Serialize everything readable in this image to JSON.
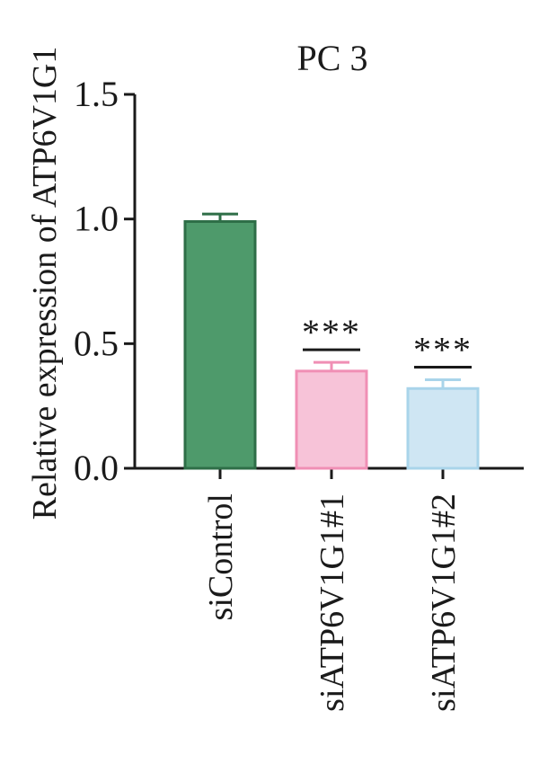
{
  "chart_data": {
    "type": "bar",
    "title": "PC 3",
    "ylabel": "Relative expression of ATP6V1G1",
    "xlabel": "",
    "ylim": [
      0,
      1.5
    ],
    "yticks": [
      "0.0",
      "0.5",
      "1.0",
      "1.5"
    ],
    "ytick_values": [
      0,
      0.5,
      1.0,
      1.5
    ],
    "categories": [
      "siControl",
      "siATP6V1G1#1",
      "siATP6V1G1#2"
    ],
    "values": [
      0.99,
      0.39,
      0.32
    ],
    "errors": [
      0.03,
      0.035,
      0.035
    ],
    "significance": [
      "",
      "***",
      "***"
    ],
    "colors": {
      "fill": [
        "#4e9a6b",
        "#f7c3d8",
        "#cfe6f3"
      ],
      "stroke": [
        "#2e6e47",
        "#f08fb5",
        "#a9d4ea"
      ],
      "axis": "#1a1a1a"
    },
    "grid": false,
    "legend": "none"
  }
}
